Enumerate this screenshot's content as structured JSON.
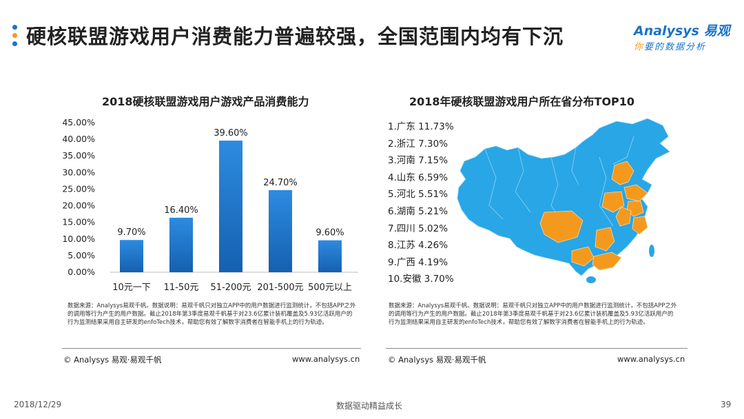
{
  "header": {
    "title": "硬核联盟游戏用户消费能力普遍较强，全国范围内均有下沉",
    "logo_main": "Analysys 易观",
    "logo_sub_a": "你",
    "logo_sub_b": "要的数据分析"
  },
  "colors": {
    "dot1": "#1a73c8",
    "dot2": "#f39a1e",
    "dot3": "#1a73c8",
    "bar_top": "#2d8be0",
    "bar_bottom": "#1560b0",
    "map_base": "#29a6e6",
    "map_highlight": "#f39a1e"
  },
  "left_chart": {
    "source": "数据来源：Analysys易观千帆。数据说明：易观千帆只对独立APP中的用户数据进行监测统计，不包括APP之外的调用等行为产生的用户数据。截止2018年第3季度易观千帆基于对23.6亿累计装机覆盖及5.93亿活跃用户的行为监测结果采用自主研发的enfoTech技术，帮助您有效了解数字消费者在智能手机上的行为轨迹。",
    "footer_left": "© Analysys 易观·易观千帆",
    "footer_right": "www.analysys.cn"
  },
  "right_chart": {
    "source": "数据来源：Analysys易观千帆。数据说明：易观千帆只对独立APP中的用户数据进行监测统计，不包括APP之外的调用等行为产生的用户数据。截止2018年第3季度易观千帆基于对23.6亿累计装机覆盖及5.93亿活跃用户的行为监测结果采用自主研发的enfoTech技术，帮助您有效了解数字消费者在智能手机上的行为轨迹。",
    "footer_left": "© Analysys 易观·易观千帆",
    "footer_right": "www.analysys.cn"
  },
  "chart_data": [
    {
      "type": "bar",
      "title": "2018硬核联盟游戏用户游戏产品消费能力",
      "categories": [
        "10元一下",
        "11-50元",
        "51-200元",
        "201-500元",
        "500元以上"
      ],
      "values": [
        9.7,
        16.4,
        39.6,
        24.7,
        9.6
      ],
      "value_labels": [
        "9.70%",
        "16.40%",
        "39.60%",
        "24.70%",
        "9.60%"
      ],
      "ylim": [
        0,
        45
      ],
      "yticks": [
        "0.00%",
        "5.00%",
        "10.00%",
        "15.00%",
        "20.00%",
        "25.00%",
        "30.00%",
        "35.00%",
        "40.00%",
        "45.00%"
      ],
      "grid": false
    },
    {
      "type": "table",
      "title": "2018年硬核联盟游戏用户所在省分布TOP10",
      "items": [
        {
          "label": "1.广东 11.73%",
          "province": "广东",
          "value": 11.73
        },
        {
          "label": "2.浙江 7.30%",
          "province": "浙江",
          "value": 7.3
        },
        {
          "label": "3.河南 7.15%",
          "province": "河南",
          "value": 7.15
        },
        {
          "label": "4.山东 6.59%",
          "province": "山东",
          "value": 6.59
        },
        {
          "label": "5.河北 5.51%",
          "province": "河北",
          "value": 5.51
        },
        {
          "label": "6.湖南 5.21%",
          "province": "湖南",
          "value": 5.21
        },
        {
          "label": "7.四川 5.02%",
          "province": "四川",
          "value": 5.02
        },
        {
          "label": "8.江苏 4.26%",
          "province": "江苏",
          "value": 4.26
        },
        {
          "label": "9.广西 4.19%",
          "province": "广西",
          "value": 4.19
        },
        {
          "label": "10.安徽 3.70%",
          "province": "安徽",
          "value": 3.7
        }
      ]
    }
  ],
  "footer": {
    "date": "2018/12/29",
    "slogan": "数据驱动精益成长",
    "page": "39"
  }
}
